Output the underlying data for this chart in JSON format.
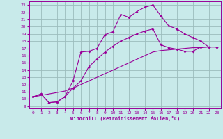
{
  "xlabel": "Windchill (Refroidissement éolien,°C)",
  "bg_color": "#c8eaea",
  "grid_color": "#9bbcbc",
  "line_color": "#990099",
  "xlim_min": -0.5,
  "xlim_max": 23.5,
  "ylim_min": 8.7,
  "ylim_max": 23.5,
  "xticks": [
    0,
    1,
    2,
    3,
    4,
    5,
    6,
    7,
    8,
    9,
    10,
    11,
    12,
    13,
    14,
    15,
    16,
    17,
    18,
    19,
    20,
    21,
    22,
    23
  ],
  "yticks": [
    9,
    10,
    11,
    12,
    13,
    14,
    15,
    16,
    17,
    18,
    19,
    20,
    21,
    22,
    23
  ],
  "curve1_x": [
    0,
    1,
    2,
    3,
    4,
    5,
    6,
    7,
    8,
    9,
    10,
    11,
    12,
    13,
    14,
    15,
    16,
    17,
    18,
    19,
    20,
    21,
    22,
    23
  ],
  "curve1_y": [
    10.3,
    10.7,
    9.5,
    9.6,
    10.3,
    12.5,
    16.5,
    16.6,
    17.0,
    18.9,
    19.3,
    21.7,
    21.3,
    22.1,
    22.7,
    23.0,
    21.5,
    20.1,
    19.7,
    19.0,
    18.5,
    18.0,
    17.2,
    17.2
  ],
  "curve2_x": [
    0,
    1,
    2,
    3,
    4,
    5,
    6,
    7,
    8,
    9,
    10,
    11,
    12,
    13,
    14,
    15,
    16,
    17,
    18,
    19,
    20,
    21,
    22,
    23
  ],
  "curve2_y": [
    10.3,
    10.7,
    9.5,
    9.6,
    10.3,
    11.5,
    12.5,
    14.5,
    15.5,
    16.5,
    17.3,
    18.0,
    18.5,
    19.0,
    19.4,
    19.7,
    17.5,
    17.1,
    16.9,
    16.6,
    16.6,
    17.2,
    17.2,
    17.2
  ],
  "curve3_x": [
    0,
    1,
    2,
    3,
    4,
    5,
    6,
    7,
    8,
    9,
    10,
    11,
    12,
    13,
    14,
    15,
    16,
    17,
    18,
    19,
    20,
    21,
    22,
    23
  ],
  "curve3_y": [
    10.3,
    10.5,
    10.7,
    10.9,
    11.1,
    11.5,
    12.0,
    12.5,
    13.0,
    13.5,
    14.0,
    14.5,
    15.0,
    15.5,
    16.0,
    16.5,
    16.7,
    16.8,
    16.9,
    17.0,
    17.1,
    17.1,
    17.2,
    17.2
  ]
}
